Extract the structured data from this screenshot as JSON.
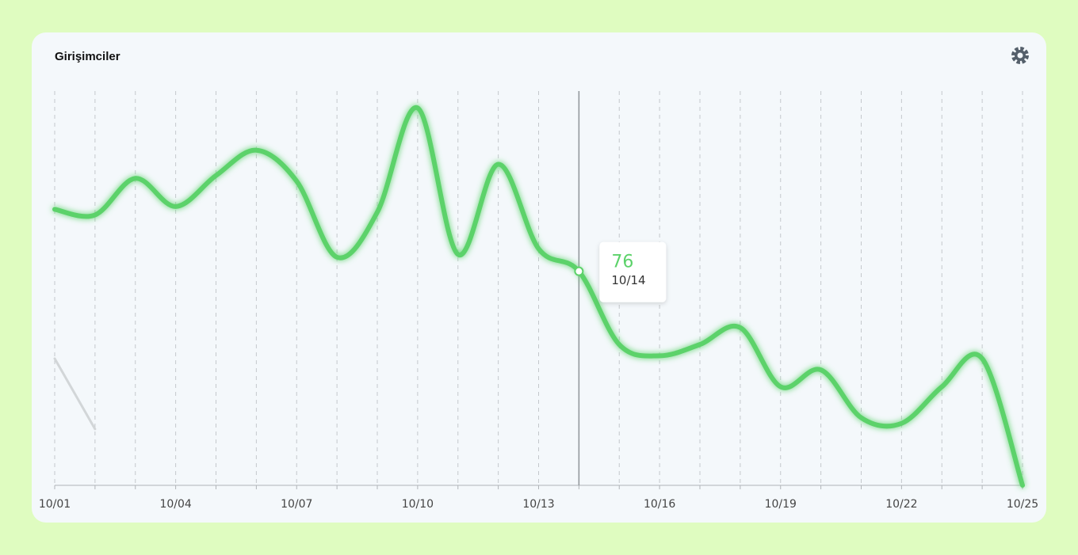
{
  "chart_data": {
    "type": "line",
    "title": "Girişimciler",
    "categories": [
      "10/01",
      null,
      null,
      "10/04",
      null,
      null,
      "10/07",
      null,
      null,
      "10/10",
      null,
      null,
      "10/13",
      null,
      null,
      "10/16",
      null,
      null,
      "10/19",
      null,
      null,
      "10/22",
      null,
      null,
      "10/25"
    ],
    "series": [
      {
        "color": "#5cd26a",
        "values": [
          98,
          96,
          109,
          99,
          110,
          119,
          108,
          81,
          97,
          134,
          82,
          114,
          84,
          76,
          50,
          46,
          50,
          56,
          35,
          41,
          24,
          22,
          35,
          45,
          0
        ]
      },
      {
        "color": "#d2d6d8",
        "values": [
          45,
          20,
          null,
          null,
          null,
          null,
          null,
          null,
          null,
          null,
          null,
          null,
          null,
          null,
          null,
          null,
          null,
          null,
          null,
          null,
          null,
          null,
          null,
          null,
          null
        ]
      }
    ],
    "ylim": [
      0,
      140
    ],
    "grid": true,
    "tooltip": {
      "index": 13,
      "label": "10/14"
    }
  }
}
